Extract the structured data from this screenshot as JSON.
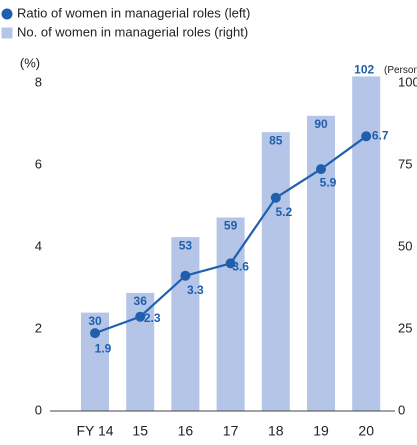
{
  "chart_data": {
    "type": "bar_line",
    "categories": [
      "FY 14",
      "15",
      "16",
      "17",
      "18",
      "19",
      "20"
    ],
    "series": [
      {
        "name": "Ratio of women in managerial roles (left)",
        "color": "#1f5fad",
        "type": "line",
        "values": [
          1.9,
          2.3,
          3.3,
          3.6,
          5.2,
          5.9,
          6.7
        ]
      },
      {
        "name": "No. of women in managerial roles (right)",
        "color": "#b4c5e8",
        "type": "bar",
        "axis": "y2",
        "values": [
          30,
          36,
          53,
          59,
          85,
          90,
          102
        ]
      }
    ],
    "ylabel": "(%)",
    "y2label": "(Persons)",
    "ylim": [
      0,
      8
    ],
    "yticks": [
      0,
      2,
      4,
      6,
      8
    ],
    "y2lim": [
      0,
      100
    ],
    "y2ticks": [
      0,
      25,
      50,
      75,
      100
    ]
  }
}
